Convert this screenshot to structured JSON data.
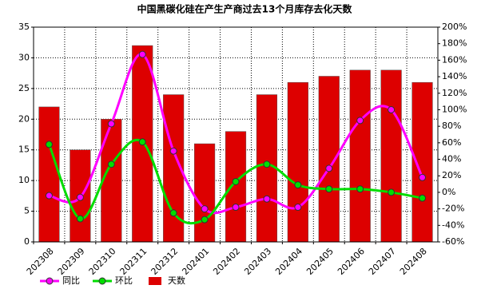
{
  "chart_data": {
    "type": "bar-line",
    "title": "中国黑碳化硅在产生产商过去13个月库存去化天数",
    "categories": [
      "202308",
      "202309",
      "202310",
      "202311",
      "202312",
      "202401",
      "202402",
      "202403",
      "202404",
      "202405",
      "202406",
      "202407",
      "202408"
    ],
    "series": [
      {
        "name": "同比",
        "type": "line",
        "axis": "y2",
        "color": "#ff00ff",
        "values": [
          -4,
          -6,
          83,
          167,
          50,
          -20,
          -18,
          -8,
          -18,
          29,
          87,
          100,
          18
        ]
      },
      {
        "name": "环比",
        "type": "line",
        "axis": "y2",
        "color": "#00dd00",
        "values": [
          58,
          -32,
          34,
          61,
          -25,
          -33,
          13,
          34,
          9,
          4,
          4,
          0,
          -7
        ]
      },
      {
        "name": "天数",
        "type": "bar",
        "color": "#dd0000",
        "values": [
          22,
          15,
          20,
          32,
          24,
          16,
          18,
          24,
          26,
          27,
          28,
          28,
          26
        ]
      }
    ],
    "ylim": [
      0,
      35
    ],
    "yticks": [
      0,
      5,
      10,
      15,
      20,
      25,
      30,
      35
    ],
    "y2lim": [
      -60,
      200
    ],
    "y2ticks": [
      {
        "value": -60,
        "label": "-60%"
      },
      {
        "value": -40,
        "label": "-40%"
      },
      {
        "value": -20,
        "label": "-20%"
      },
      {
        "value": 0,
        "label": "0%"
      },
      {
        "value": 20,
        "label": "20%"
      },
      {
        "value": 40,
        "label": "40%"
      },
      {
        "value": 60,
        "label": "60%"
      },
      {
        "value": 80,
        "label": "80%"
      },
      {
        "value": 100,
        "label": "100%"
      },
      {
        "value": 120,
        "label": "120%"
      },
      {
        "value": 140,
        "label": "140%"
      },
      {
        "value": 160,
        "label": "160%"
      },
      {
        "value": 180,
        "label": "180%"
      },
      {
        "value": 200,
        "label": "200%"
      }
    ],
    "grid": true,
    "legend": "bottom-left"
  }
}
